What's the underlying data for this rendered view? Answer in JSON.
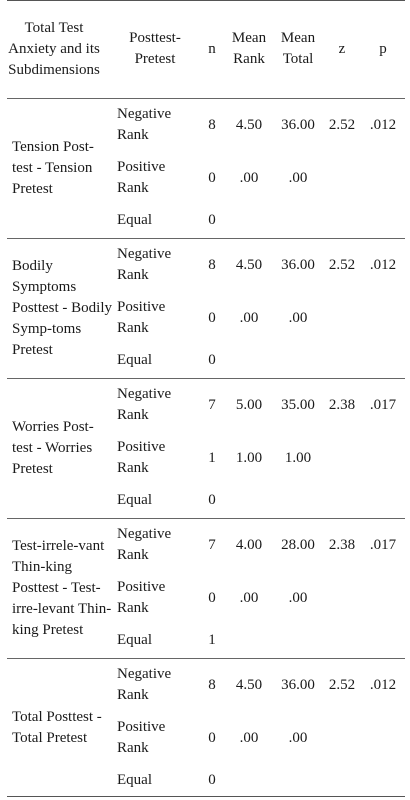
{
  "header": {
    "col_dimension": "Total Test Anxiety and its Subdimensions",
    "col_comparison": "Posttest-Pretest",
    "col_n": "n",
    "col_mean_rank": "Mean Rank",
    "col_mean_total": "Mean Total",
    "col_z": "z",
    "col_p": "p"
  },
  "groups": [
    {
      "label": "Tension Post-test - Tension Pretest",
      "z": "2.52",
      "p": ".012",
      "rows": [
        {
          "type": "Negative Rank",
          "n": "8",
          "mean_rank": "4.50",
          "mean_total": "36.00"
        },
        {
          "type": "Positive Rank",
          "n": "0",
          "mean_rank": ".00",
          "mean_total": ".00"
        },
        {
          "type": "Equal",
          "n": "0",
          "mean_rank": "",
          "mean_total": ""
        }
      ]
    },
    {
      "label": "Bodily Symptoms Posttest - Bodily Symp-toms Pretest",
      "z": "2.52",
      "p": ".012",
      "rows": [
        {
          "type": "Negative Rank",
          "n": "8",
          "mean_rank": "4.50",
          "mean_total": "36.00"
        },
        {
          "type": "Positive Rank",
          "n": "0",
          "mean_rank": ".00",
          "mean_total": ".00"
        },
        {
          "type": "Equal",
          "n": "0",
          "mean_rank": "",
          "mean_total": ""
        }
      ]
    },
    {
      "label": "Worries Post-test - Worries Pretest",
      "z": "2.38",
      "p": ".017",
      "rows": [
        {
          "type": "Negative Rank",
          "n": "7",
          "mean_rank": "5.00",
          "mean_total": "35.00"
        },
        {
          "type": "Positive Rank",
          "n": "1",
          "mean_rank": "1.00",
          "mean_total": "1.00"
        },
        {
          "type": "Equal",
          "n": "0",
          "mean_rank": "",
          "mean_total": ""
        }
      ]
    },
    {
      "label": "Test-irrele-vant Thin-king Posttest - Test-irre-levant Thin-king Pretest",
      "z": "2.38",
      "p": ".017",
      "rows": [
        {
          "type": "Negative Rank",
          "n": "7",
          "mean_rank": "4.00",
          "mean_total": "28.00"
        },
        {
          "type": "Positive Rank",
          "n": "0",
          "mean_rank": ".00",
          "mean_total": ".00"
        },
        {
          "type": "Equal",
          "n": "1",
          "mean_rank": "",
          "mean_total": ""
        }
      ]
    },
    {
      "label": "Total Posttest - Total Pretest",
      "z": "2.52",
      "p": ".012",
      "rows": [
        {
          "type": "Negative Rank",
          "n": "8",
          "mean_rank": "4.50",
          "mean_total": "36.00"
        },
        {
          "type": "Positive Rank",
          "n": "0",
          "mean_rank": ".00",
          "mean_total": ".00"
        },
        {
          "type": "Equal",
          "n": "0",
          "mean_rank": "",
          "mean_total": ""
        }
      ]
    }
  ]
}
